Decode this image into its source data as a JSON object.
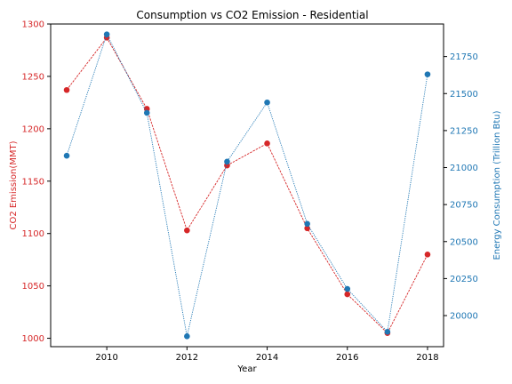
{
  "chart_data": {
    "type": "line",
    "title": "Consumption vs CO2 Emission - Residential",
    "xlabel": "Year",
    "x": [
      2009,
      2010,
      2011,
      2012,
      2013,
      2014,
      2015,
      2016,
      2017,
      2018
    ],
    "x_ticks": [
      2010,
      2012,
      2014,
      2016,
      2018
    ],
    "xlim": [
      2008.6,
      2018.4
    ],
    "grid": false,
    "series": [
      {
        "name": "CO2 Emission(MMT)",
        "axis": "left",
        "color": "#d62728",
        "line_style": "dashed",
        "values": [
          1237,
          1287,
          1219,
          1103,
          1165,
          1186,
          1105,
          1042,
          1005,
          1080
        ]
      },
      {
        "name": "Energy Consumption (Trillion Btu)",
        "axis": "right",
        "color": "#1f77b4",
        "line_style": "dotted",
        "values": [
          21080,
          21900,
          21370,
          19860,
          21040,
          21440,
          20620,
          20180,
          19890,
          21630
        ]
      }
    ],
    "y_left": {
      "label": "CO2 Emission(MMT)",
      "color": "#d62728",
      "lim": [
        992,
        1300
      ],
      "ticks": [
        1000,
        1050,
        1100,
        1150,
        1200,
        1250,
        1300
      ]
    },
    "y_right": {
      "label": "Energy Consumption (Trillion Btu)",
      "color": "#1f77b4",
      "lim": [
        19790,
        21970
      ],
      "ticks": [
        20000,
        20250,
        20500,
        20750,
        21000,
        21250,
        21500,
        21750
      ]
    }
  }
}
